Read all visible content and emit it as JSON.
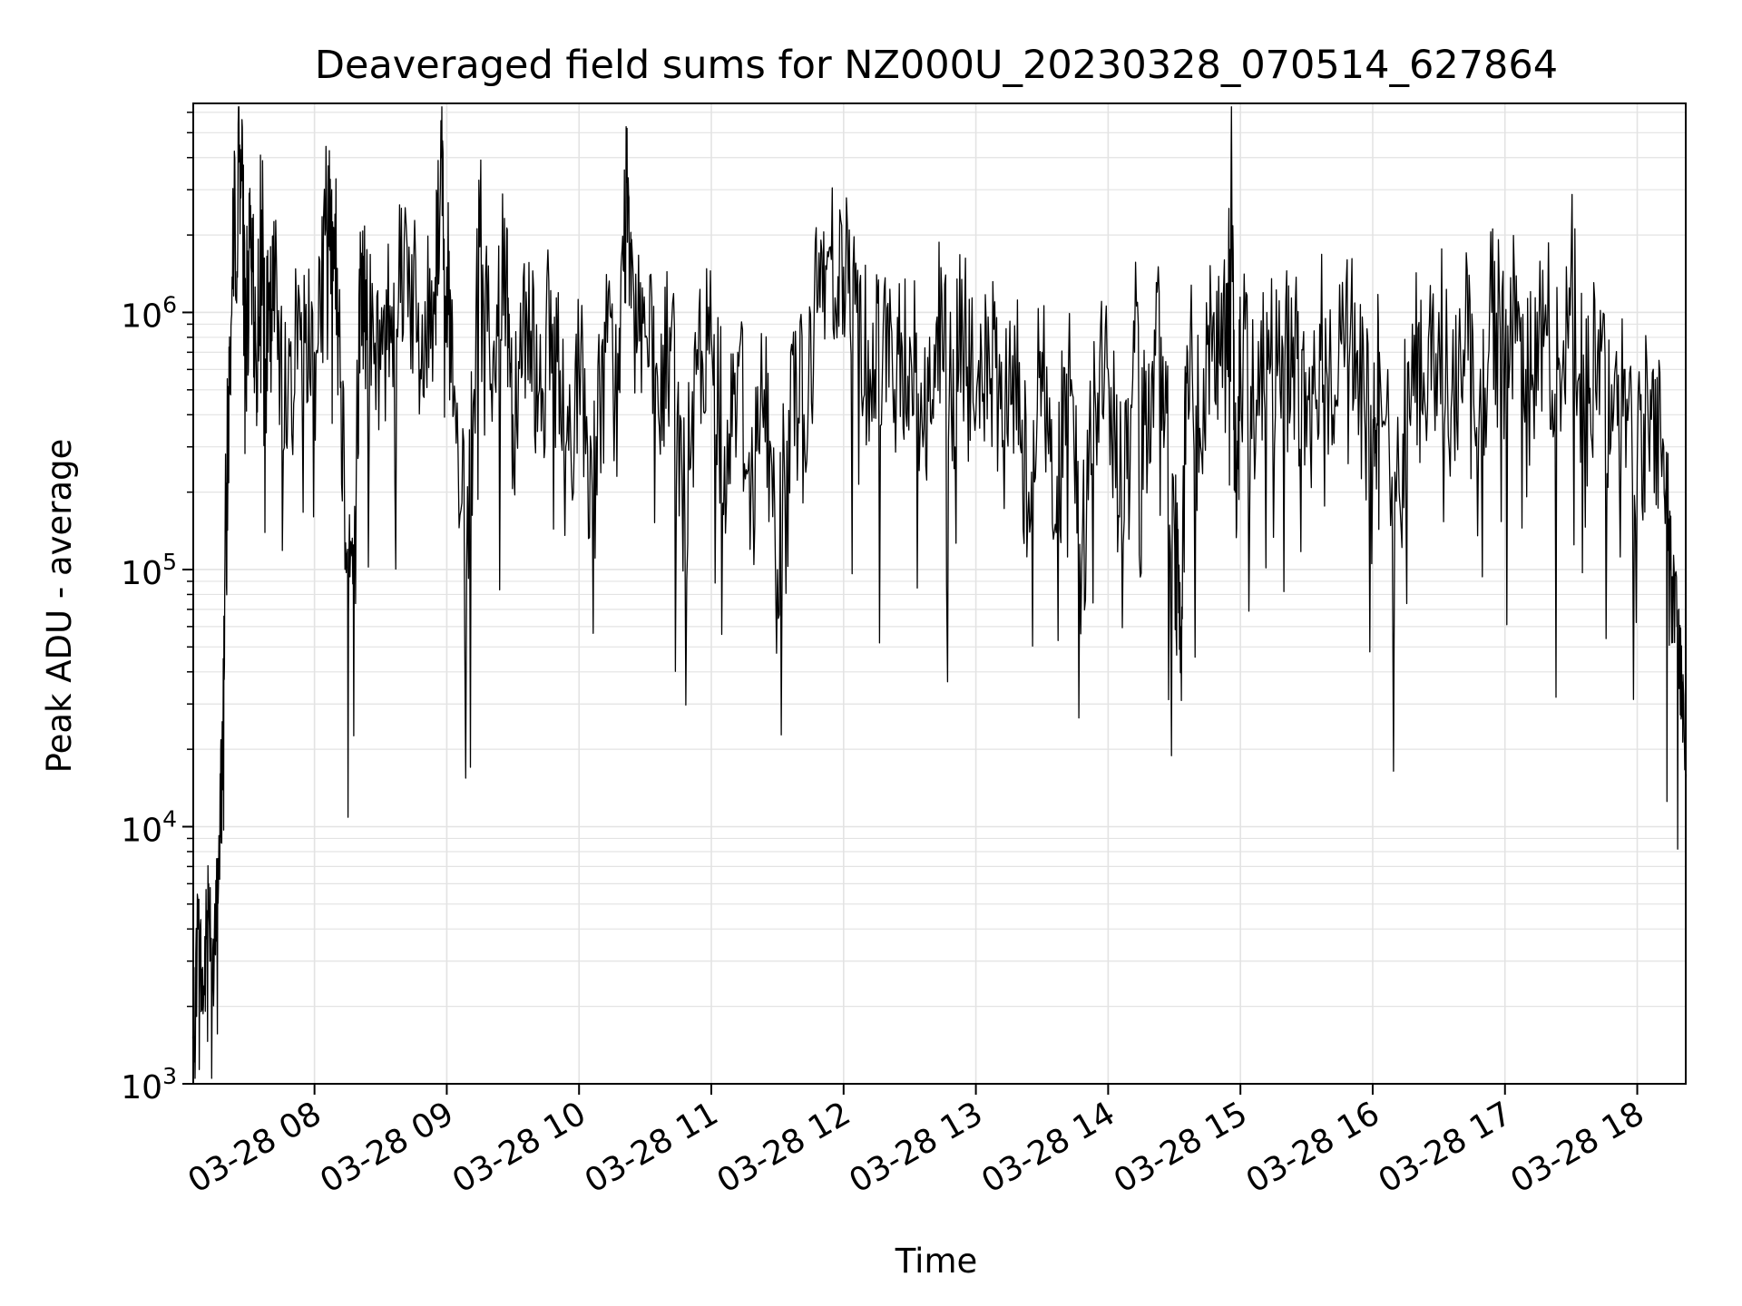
{
  "chart_data": {
    "type": "line",
    "title": "Deaveraged field sums for NZ000U_20230328_070514_627864",
    "xlabel": "Time",
    "ylabel": "Peak ADU - average",
    "yscale": "log",
    "ylim": [
      1000,
      6500000
    ],
    "xlim": [
      "03-28 07:05",
      "03-28 18:22"
    ],
    "grid": true,
    "line_color": "#000000",
    "grid_color": "#e3e3e3",
    "x_ticks": [
      {
        "hour": 8,
        "label": "03-28 08"
      },
      {
        "hour": 9,
        "label": "03-28 09"
      },
      {
        "hour": 10,
        "label": "03-28 10"
      },
      {
        "hour": 11,
        "label": "03-28 11"
      },
      {
        "hour": 12,
        "label": "03-28 12"
      },
      {
        "hour": 13,
        "label": "03-28 13"
      },
      {
        "hour": 14,
        "label": "03-28 14"
      },
      {
        "hour": 15,
        "label": "03-28 15"
      },
      {
        "hour": 16,
        "label": "03-28 16"
      },
      {
        "hour": 17,
        "label": "03-28 17"
      },
      {
        "hour": 18,
        "label": "03-28 18"
      }
    ],
    "y_ticks": [
      {
        "value": 1000,
        "base": "10",
        "exp": "3"
      },
      {
        "value": 10000,
        "base": "10",
        "exp": "4"
      },
      {
        "value": 100000,
        "base": "10",
        "exp": "5"
      },
      {
        "value": 1000000,
        "base": "10",
        "exp": "6"
      }
    ],
    "series": [
      {
        "x_unit": "hour of 03-28",
        "points": [
          [
            7.08,
            1500
          ],
          [
            7.12,
            4000
          ],
          [
            7.16,
            2000
          ],
          [
            7.2,
            6000
          ],
          [
            7.24,
            2500
          ],
          [
            7.28,
            9000
          ],
          [
            7.3,
            15000
          ],
          [
            7.33,
            140000
          ],
          [
            7.36,
            600000
          ],
          [
            7.4,
            2300000
          ],
          [
            7.44,
            4300000
          ],
          [
            7.48,
            900000
          ],
          [
            7.52,
            1500000
          ],
          [
            7.56,
            600000
          ],
          [
            7.6,
            2500000
          ],
          [
            7.65,
            700000
          ],
          [
            7.7,
            1200000
          ],
          [
            7.8,
            500000
          ],
          [
            7.9,
            1000000
          ],
          [
            8.0,
            700000
          ],
          [
            8.08,
            2000000
          ],
          [
            8.13,
            3000000
          ],
          [
            8.18,
            1000000
          ],
          [
            8.25,
            120000
          ],
          [
            8.3,
            100000
          ],
          [
            8.35,
            1400000
          ],
          [
            8.4,
            900000
          ],
          [
            8.5,
            600000
          ],
          [
            8.6,
            1300000
          ],
          [
            8.7,
            1800000
          ],
          [
            8.8,
            600000
          ],
          [
            8.9,
            1200000
          ],
          [
            8.96,
            4000000
          ],
          [
            9.0,
            1500000
          ],
          [
            9.05,
            400000
          ],
          [
            9.15,
            100000
          ],
          [
            9.25,
            1800000
          ],
          [
            9.35,
            700000
          ],
          [
            9.45,
            1500000
          ],
          [
            9.5,
            400000
          ],
          [
            9.6,
            1200000
          ],
          [
            9.7,
            500000
          ],
          [
            9.8,
            900000
          ],
          [
            9.9,
            300000
          ],
          [
            10.0,
            600000
          ],
          [
            10.1,
            200000
          ],
          [
            10.2,
            700000
          ],
          [
            10.3,
            500000
          ],
          [
            10.36,
            3200000
          ],
          [
            10.4,
            1800000
          ],
          [
            10.5,
            800000
          ],
          [
            10.6,
            400000
          ],
          [
            10.7,
            900000
          ],
          [
            10.8,
            150000
          ],
          [
            10.9,
            600000
          ],
          [
            11.0,
            800000
          ],
          [
            11.1,
            300000
          ],
          [
            11.2,
            700000
          ],
          [
            11.3,
            200000
          ],
          [
            11.4,
            500000
          ],
          [
            11.5,
            100000
          ],
          [
            11.6,
            700000
          ],
          [
            11.7,
            400000
          ],
          [
            11.8,
            1000000
          ],
          [
            11.9,
            1800000
          ],
          [
            12.0,
            1500000
          ],
          [
            12.1,
            1000000
          ],
          [
            12.2,
            600000
          ],
          [
            12.3,
            900000
          ],
          [
            12.4,
            500000
          ],
          [
            12.5,
            800000
          ],
          [
            12.6,
            300000
          ],
          [
            12.7,
            900000
          ],
          [
            12.8,
            500000
          ],
          [
            12.9,
            800000
          ],
          [
            13.0,
            400000
          ],
          [
            13.1,
            700000
          ],
          [
            13.2,
            300000
          ],
          [
            13.3,
            600000
          ],
          [
            13.4,
            200000
          ],
          [
            13.5,
            700000
          ],
          [
            13.6,
            150000
          ],
          [
            13.7,
            600000
          ],
          [
            13.8,
            100000
          ],
          [
            13.9,
            500000
          ],
          [
            14.0,
            600000
          ],
          [
            14.1,
            200000
          ],
          [
            14.2,
            700000
          ],
          [
            14.3,
            300000
          ],
          [
            14.4,
            800000
          ],
          [
            14.5,
            150000
          ],
          [
            14.55,
            60000
          ],
          [
            14.6,
            700000
          ],
          [
            14.7,
            300000
          ],
          [
            14.8,
            1000000
          ],
          [
            14.9,
            600000
          ],
          [
            14.93,
            4400000
          ],
          [
            14.96,
            200000
          ],
          [
            15.0,
            700000
          ],
          [
            15.1,
            400000
          ],
          [
            15.2,
            1000000
          ],
          [
            15.3,
            500000
          ],
          [
            15.4,
            800000
          ],
          [
            15.5,
            300000
          ],
          [
            15.6,
            900000
          ],
          [
            15.7,
            400000
          ],
          [
            15.8,
            1300000
          ],
          [
            15.9,
            500000
          ],
          [
            16.0,
            300000
          ],
          [
            16.05,
            700000
          ],
          [
            16.2,
            200000
          ],
          [
            16.3,
            900000
          ],
          [
            16.4,
            400000
          ],
          [
            16.5,
            1000000
          ],
          [
            16.6,
            500000
          ],
          [
            16.7,
            800000
          ],
          [
            16.8,
            300000
          ],
          [
            16.9,
            1000000
          ],
          [
            17.0,
            700000
          ],
          [
            17.1,
            1100000
          ],
          [
            17.2,
            500000
          ],
          [
            17.3,
            900000
          ],
          [
            17.4,
            600000
          ],
          [
            17.5,
            1500000
          ],
          [
            17.6,
            400000
          ],
          [
            17.7,
            700000
          ],
          [
            17.8,
            300000
          ],
          [
            17.9,
            600000
          ],
          [
            18.0,
            250000
          ],
          [
            18.1,
            500000
          ],
          [
            18.2,
            300000
          ],
          [
            18.25,
            100000
          ],
          [
            18.3,
            60000
          ],
          [
            18.34,
            35000
          ],
          [
            18.37,
            16000
          ]
        ]
      }
    ]
  }
}
